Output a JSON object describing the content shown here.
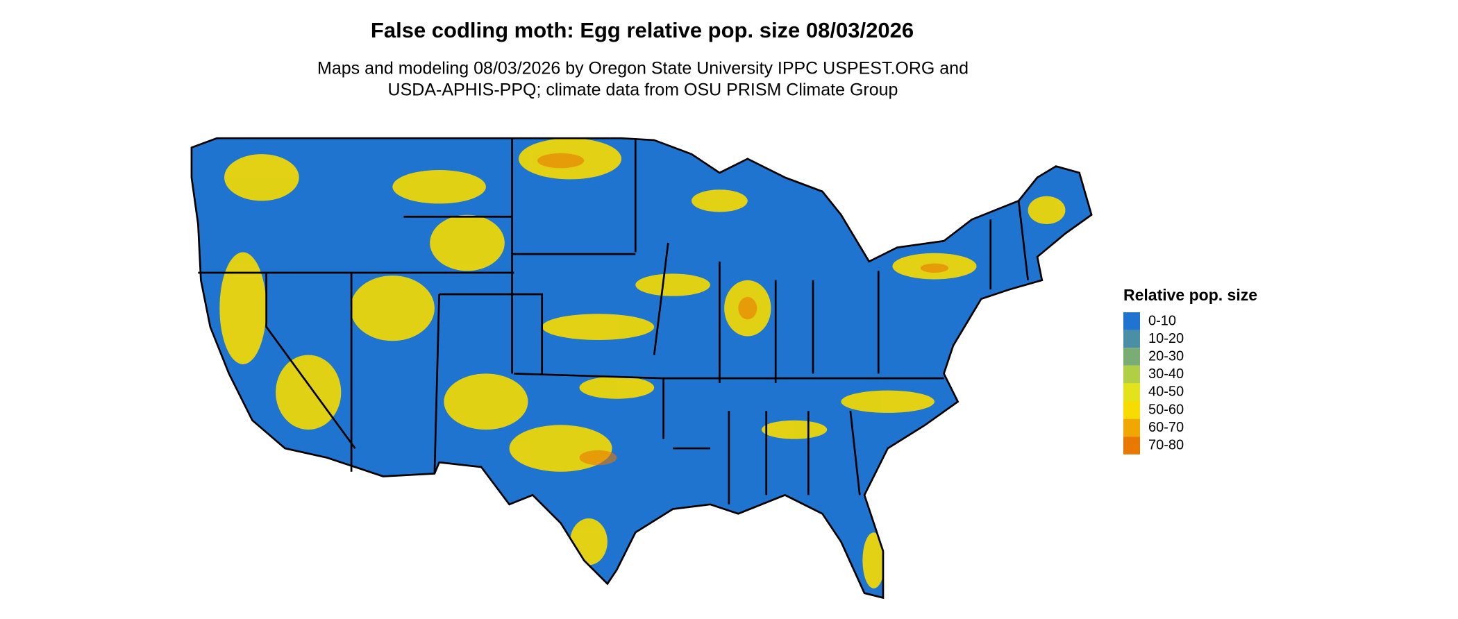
{
  "title": "False codling moth: Egg relative pop. size 08/03/2026",
  "subtitle": [
    "Maps and modeling 08/03/2026 by Oregon State University IPPC USPEST.ORG and",
    "USDA-APHIS-PPQ; climate data from OSU PRISM Climate Group"
  ],
  "legend": {
    "title": "Relative pop. size",
    "items": [
      {
        "label": "0-10",
        "color": "#1f74cf"
      },
      {
        "label": "10-20",
        "color": "#4a8fa6"
      },
      {
        "label": "20-30",
        "color": "#7aad74"
      },
      {
        "label": "30-40",
        "color": "#b0cf45"
      },
      {
        "label": "40-50",
        "color": "#e3e31c"
      },
      {
        "label": "50-60",
        "color": "#f7dc00"
      },
      {
        "label": "60-70",
        "color": "#f0a800"
      },
      {
        "label": "70-80",
        "color": "#e87800"
      }
    ]
  }
}
